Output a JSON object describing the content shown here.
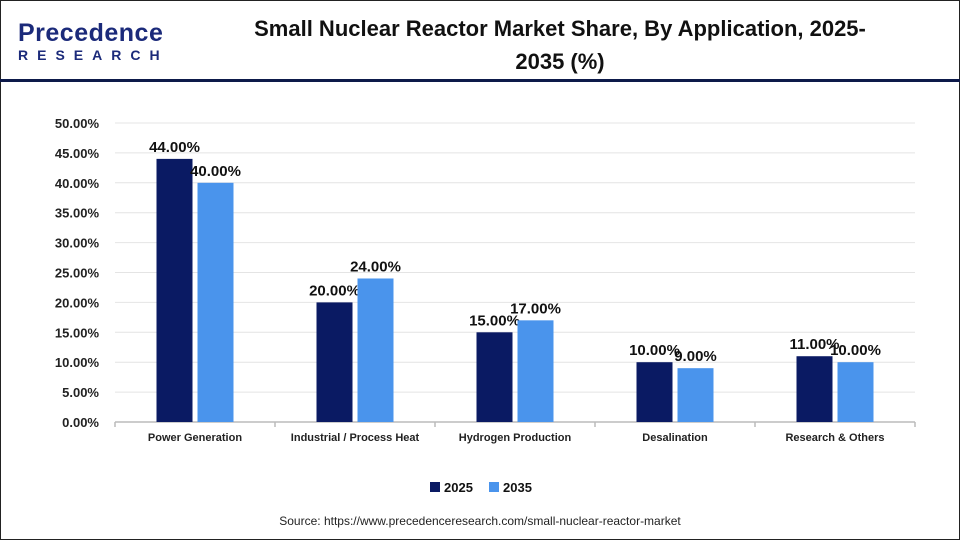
{
  "logo": {
    "line1": "Precedence",
    "line2": "RESEARCH"
  },
  "source": "Source: https://www.precedenceresearch.com/small-nuclear-reactor-market",
  "chart_data": {
    "type": "bar",
    "title": "Small Nuclear Reactor Market Share, By Application, 2025-2035 (%)",
    "title_lines": [
      "Small Nuclear Reactor Market Share, By Application, 2025-",
      "2035 (%)"
    ],
    "categories": [
      "Power Generation",
      "Industrial / Process Heat",
      "Hydrogen Production",
      "Desalination",
      "Research & Others"
    ],
    "series": [
      {
        "name": "2025",
        "color": "#0a1a63",
        "values": [
          44,
          20,
          15,
          10,
          11
        ],
        "labels": [
          "44.00%",
          "20.00%",
          "15.00%",
          "10.00%",
          "11.00%"
        ]
      },
      {
        "name": "2035",
        "color": "#4a94ec",
        "values": [
          40,
          24,
          17,
          9,
          10
        ],
        "labels": [
          "40.00%",
          "24.00%",
          "17.00%",
          "9.00%",
          "10.00%"
        ]
      }
    ],
    "yticks": [
      "0.00%",
      "5.00%",
      "10.00%",
      "15.00%",
      "20.00%",
      "25.00%",
      "30.00%",
      "35.00%",
      "40.00%",
      "45.00%",
      "50.00%"
    ],
    "ylim": [
      0,
      50
    ],
    "grid": true,
    "legend_position": "bottom"
  }
}
